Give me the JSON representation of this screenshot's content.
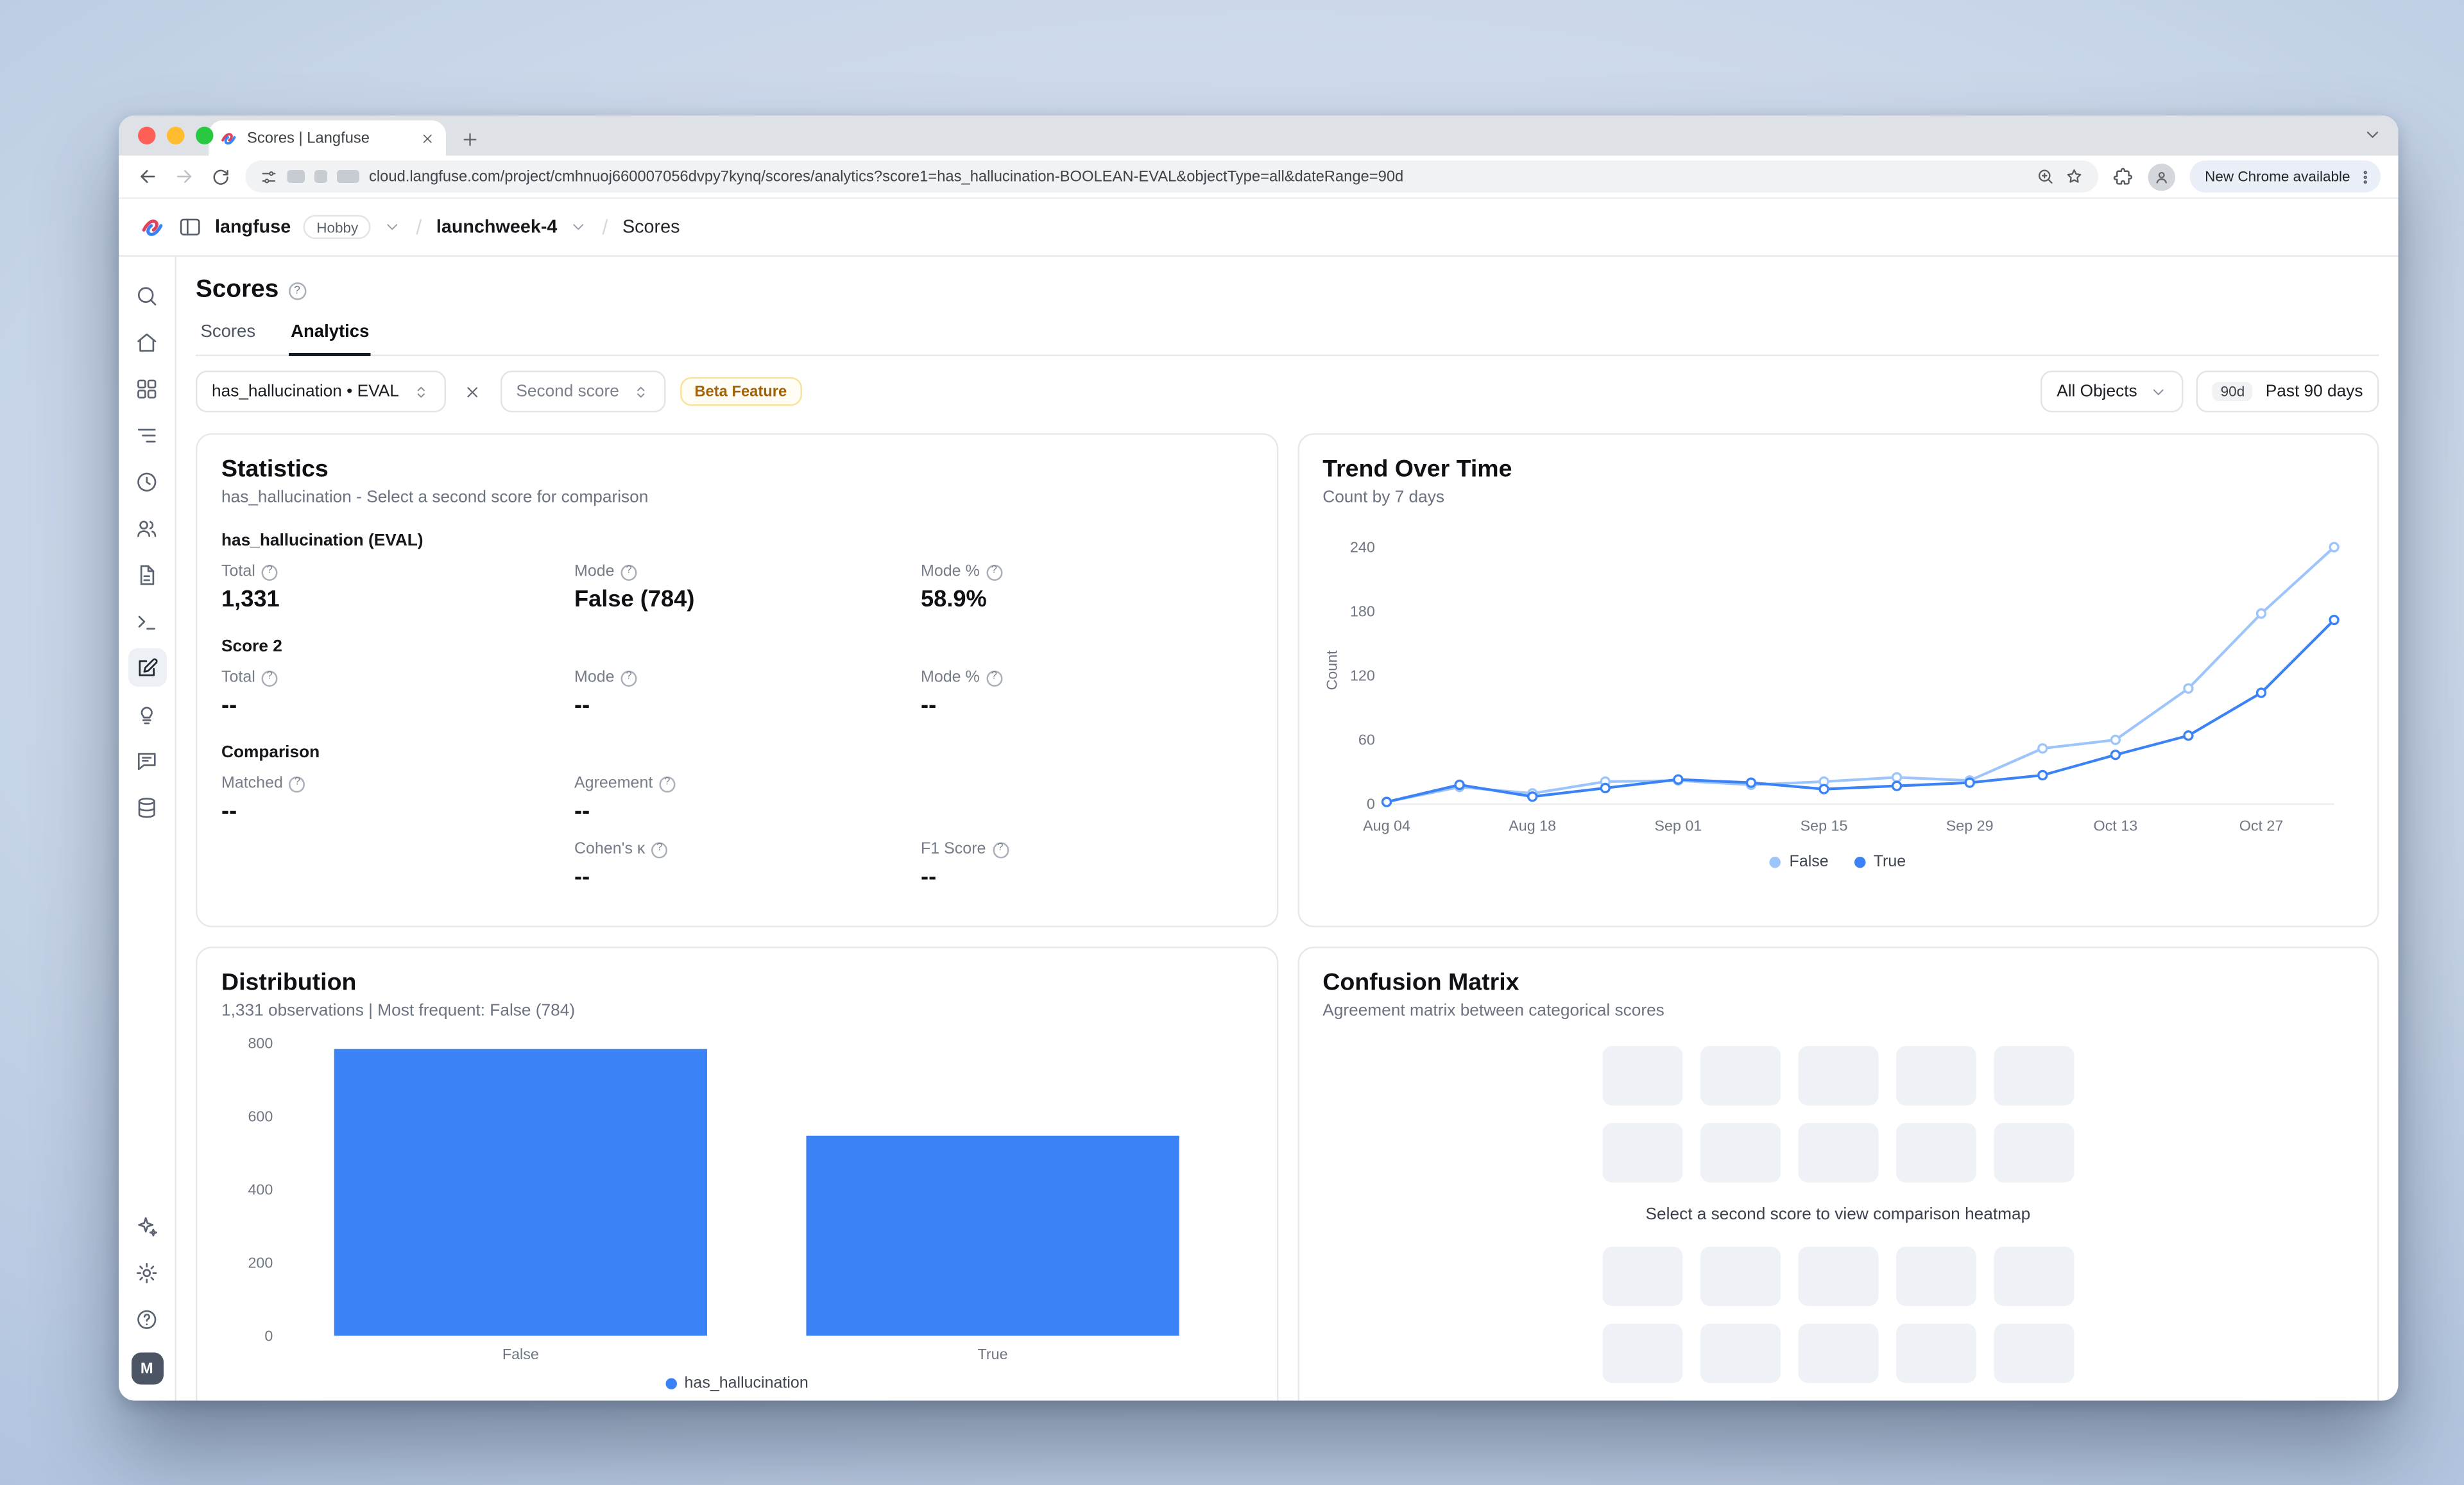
{
  "browser": {
    "tab_title": "Scores | Langfuse",
    "url": "cloud.langfuse.com/project/cmhnuoj660007056dvpy7kynq/scores/analytics?score1=has_hallucination-BOOLEAN-EVAL&objectType=all&dateRange=90d",
    "update_chip": "New Chrome available"
  },
  "app_header": {
    "org_name": "langfuse",
    "org_plan": "Hobby",
    "project_name": "launchweek-4",
    "page_name": "Scores"
  },
  "sidebar": {
    "icons": [
      "search",
      "home",
      "dashboards",
      "tracing",
      "sessions",
      "users",
      "prompts",
      "playground",
      "evaluation",
      "ideas",
      "annotation",
      "datasets"
    ],
    "active_icon": "evaluation",
    "bottom_icons": [
      "sparkles",
      "settings",
      "support"
    ],
    "avatar_initial": "M"
  },
  "page": {
    "title": "Scores",
    "tabs": [
      {
        "label": "Scores"
      },
      {
        "label": "Analytics"
      }
    ],
    "active_tab": "Analytics"
  },
  "filters": {
    "score1_value": "has_hallucination • EVAL",
    "score2_placeholder": "Second score",
    "beta_badge": "Beta Feature",
    "object_filter": "All Objects",
    "date_range_badge": "90d",
    "date_range_label": "Past 90 days"
  },
  "statistics": {
    "title": "Statistics",
    "subtitle": "has_hallucination - Select a second score for comparison",
    "score1_heading": "has_hallucination (EVAL)",
    "score1_stats": [
      {
        "label": "Total",
        "value": "1,331"
      },
      {
        "label": "Mode",
        "value": "False (784)"
      },
      {
        "label": "Mode %",
        "value": "58.9%"
      }
    ],
    "score2_heading": "Score 2",
    "score2_stats": [
      {
        "label": "Total",
        "value": "--"
      },
      {
        "label": "Mode",
        "value": "--"
      },
      {
        "label": "Mode %",
        "value": "--"
      }
    ],
    "comparison_heading": "Comparison",
    "comparison_row1": [
      {
        "label": "Matched",
        "value": "--"
      },
      {
        "label": "Agreement",
        "value": "--"
      }
    ],
    "comparison_row2": [
      {
        "label": "Cohen's κ",
        "value": "--"
      },
      {
        "label": "F1 Score",
        "value": "--"
      }
    ]
  },
  "trend": {
    "title": "Trend Over Time",
    "subtitle": "Count by 7 days"
  },
  "distribution": {
    "title": "Distribution",
    "subtitle": "1,331 observations | Most frequent: False (784)"
  },
  "confusion": {
    "title": "Confusion Matrix",
    "subtitle": "Agreement matrix between categorical scores",
    "empty_message": "Select a second score to view comparison heatmap"
  },
  "chart_data": [
    {
      "type": "line",
      "title": "Trend Over Time",
      "subtitle": "Count by 7 days",
      "ylabel": "Count",
      "ylim": [
        0,
        250
      ],
      "yticks": [
        0,
        60,
        120,
        180,
        240
      ],
      "x_tick_labels": [
        "Aug 04",
        "Aug 18",
        "Sep 01",
        "Sep 15",
        "Sep 29",
        "Oct 13",
        "Oct 27"
      ],
      "x_tick_every": 2,
      "grid": false,
      "legend_position": "bottom",
      "series": [
        {
          "name": "False",
          "color": "#9ec5fb",
          "values": [
            2,
            16,
            10,
            21,
            22,
            18,
            21,
            25,
            22,
            52,
            60,
            108,
            178,
            240
          ]
        },
        {
          "name": "True",
          "color": "#3b82f6",
          "values": [
            2,
            18,
            7,
            15,
            23,
            20,
            14,
            17,
            20,
            27,
            46,
            64,
            104,
            172
          ]
        }
      ]
    },
    {
      "type": "bar",
      "title": "Distribution",
      "categories": [
        "False",
        "True"
      ],
      "series": [
        {
          "name": "has_hallucination",
          "color": "#3b82f6",
          "values": [
            784,
            547
          ]
        }
      ],
      "ylim": [
        0,
        800
      ],
      "yticks": [
        0,
        200,
        400,
        600,
        800
      ],
      "grid": false,
      "legend_position": "bottom"
    }
  ]
}
